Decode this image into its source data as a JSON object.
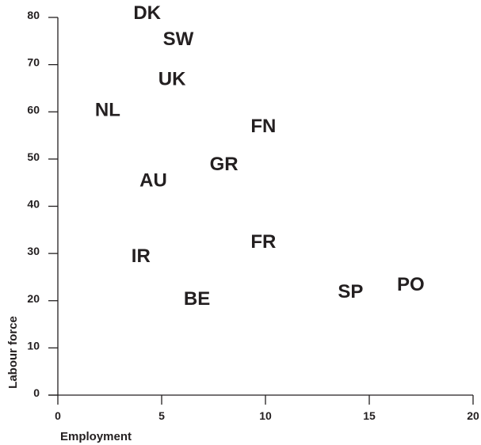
{
  "chart_data": {
    "type": "scatter",
    "title": "",
    "xlabel": "Employment",
    "ylabel": "Labour force",
    "xlim": [
      0,
      20
    ],
    "ylim": [
      0,
      80
    ],
    "x_ticks": [
      "0",
      "5",
      "10",
      "15",
      "20"
    ],
    "y_ticks": [
      "0",
      "10",
      "20",
      "30",
      "40",
      "50",
      "60",
      "70",
      "80"
    ],
    "grid": false,
    "marker": "text-label",
    "points": [
      {
        "label": "DK",
        "x": 4.3,
        "y": 81
      },
      {
        "label": "SW",
        "x": 5.8,
        "y": 75.5
      },
      {
        "label": "UK",
        "x": 5.5,
        "y": 67
      },
      {
        "label": "NL",
        "x": 2.4,
        "y": 60.5
      },
      {
        "label": "FN",
        "x": 9.9,
        "y": 57
      },
      {
        "label": "GR",
        "x": 8.0,
        "y": 49
      },
      {
        "label": "AU",
        "x": 4.6,
        "y": 45.5
      },
      {
        "label": "FR",
        "x": 9.9,
        "y": 32.5
      },
      {
        "label": "IR",
        "x": 4.0,
        "y": 29.5
      },
      {
        "label": "BE",
        "x": 6.7,
        "y": 20.5
      },
      {
        "label": "SP",
        "x": 14.1,
        "y": 22
      },
      {
        "label": "PO",
        "x": 17.0,
        "y": 23.5
      }
    ]
  }
}
